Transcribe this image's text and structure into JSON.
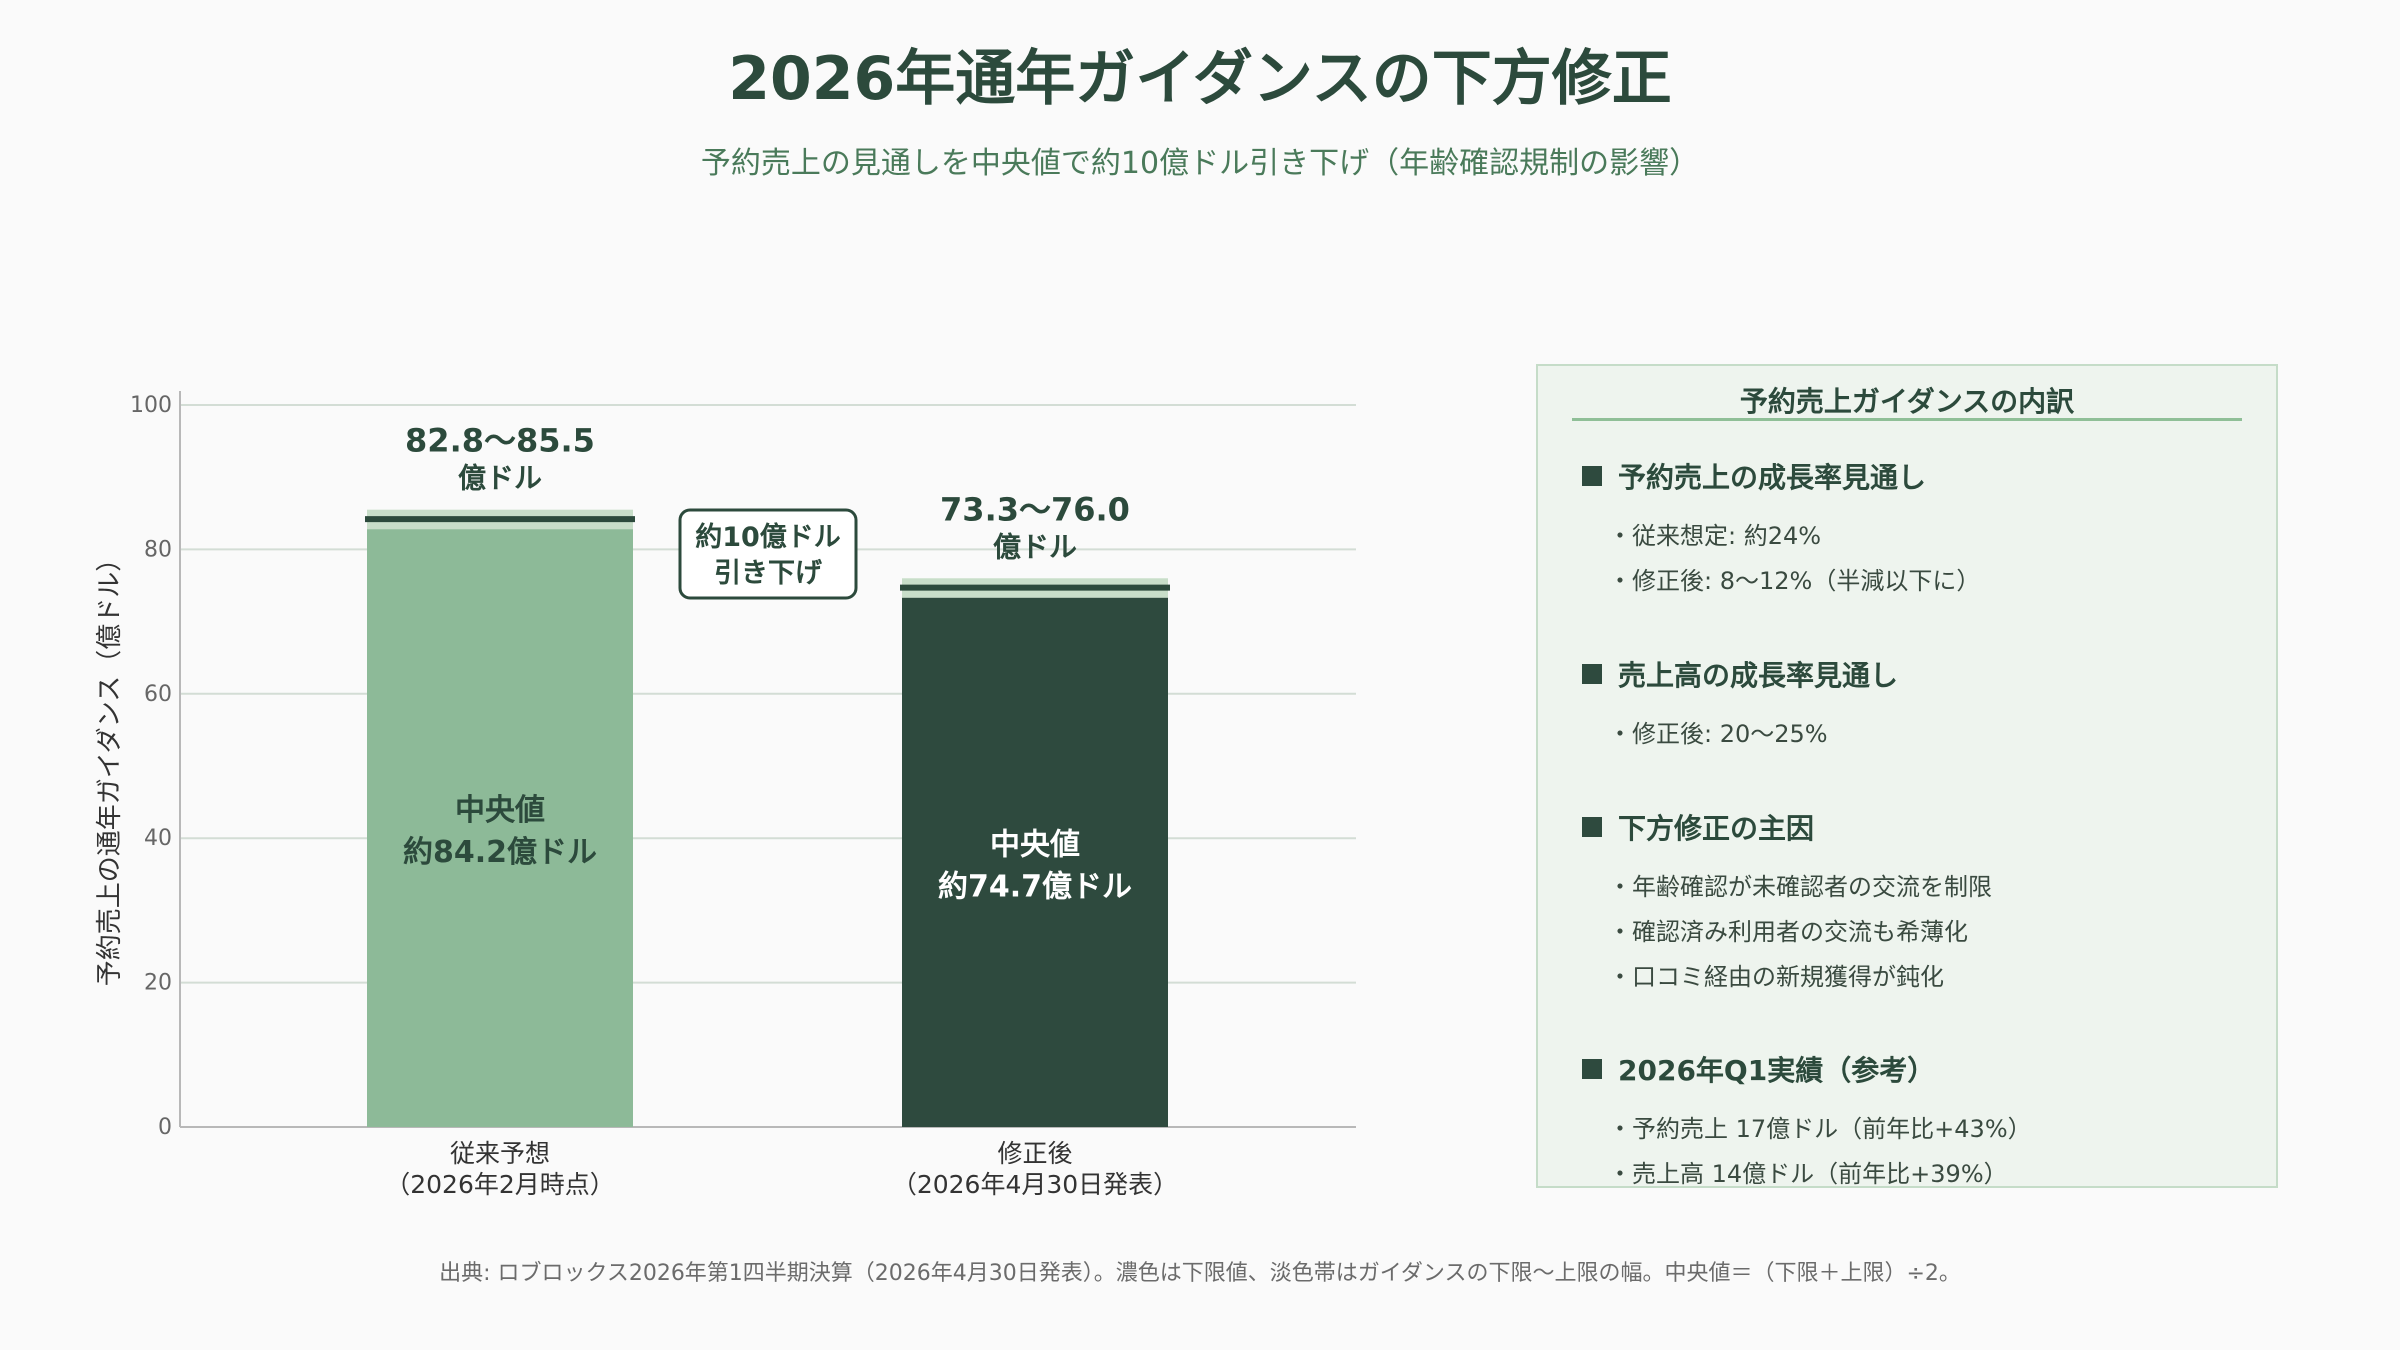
{
  "header": {
    "title": "2026年通年ガイダンスの下方修正",
    "subtitle": "予約売上の見通しを中央値で約10億ドル引き下げ（年齢確認規制の影響）"
  },
  "chart_data": {
    "type": "bar",
    "ylabel": "予約売上の通年ガイダンス（億ドル）",
    "ylim": [
      0,
      100
    ],
    "yticks": [
      0,
      20,
      40,
      60,
      80,
      100
    ],
    "grid": true,
    "categories": [
      {
        "line1": "従来予想",
        "line2": "（2026年2月時点）"
      },
      {
        "line1": "修正後",
        "line2": "（2026年4月30日発表）"
      }
    ],
    "bars": [
      {
        "low": 82.8,
        "high": 85.5,
        "mid": 84.2,
        "color": "#8dba98",
        "band_color": "#c8dec9",
        "range_line1": "82.8〜85.5",
        "range_line2": "億ドル",
        "inner_line1": "中央値",
        "inner_line2": "約84.2億ドル",
        "inner_color": "#2c4a3c"
      },
      {
        "low": 73.3,
        "high": 76.0,
        "mid": 74.7,
        "color": "#2e4a3e",
        "band_color": "#c8dec9",
        "range_line1": "73.3〜76.0",
        "range_line2": "億ドル",
        "inner_line1": "中央値",
        "inner_line2": "約74.7億ドル",
        "inner_color": "#ffffff"
      }
    ],
    "annotation": {
      "line1": "約10億ドル",
      "line2": "引き下げ"
    }
  },
  "panel": {
    "title": "予約売上ガイダンスの内訳",
    "sections": [
      {
        "heading": "予約売上の成長率見通し",
        "items": [
          "・従来想定: 約24%",
          "・修正後: 8〜12%（半減以下に）"
        ]
      },
      {
        "heading": "売上高の成長率見通し",
        "items": [
          "・修正後: 20〜25%"
        ]
      },
      {
        "heading": "下方修正の主因",
        "items": [
          "・年齢確認が未確認者の交流を制限",
          "・確認済み利用者の交流も希薄化",
          "・口コミ経由の新規獲得が鈍化"
        ]
      },
      {
        "heading": "2026年Q1実績（参考）",
        "items": [
          "・予約売上 17億ドル（前年比+43%）",
          "・売上高 14億ドル（前年比+39%）"
        ]
      }
    ]
  },
  "footer": {
    "source": "出典: ロブロックス2026年第1四半期決算（2026年4月30日発表）。濃色は下限値、淡色帯はガイダンスの下限〜上限の幅。中央値＝（下限＋上限）÷2。"
  }
}
